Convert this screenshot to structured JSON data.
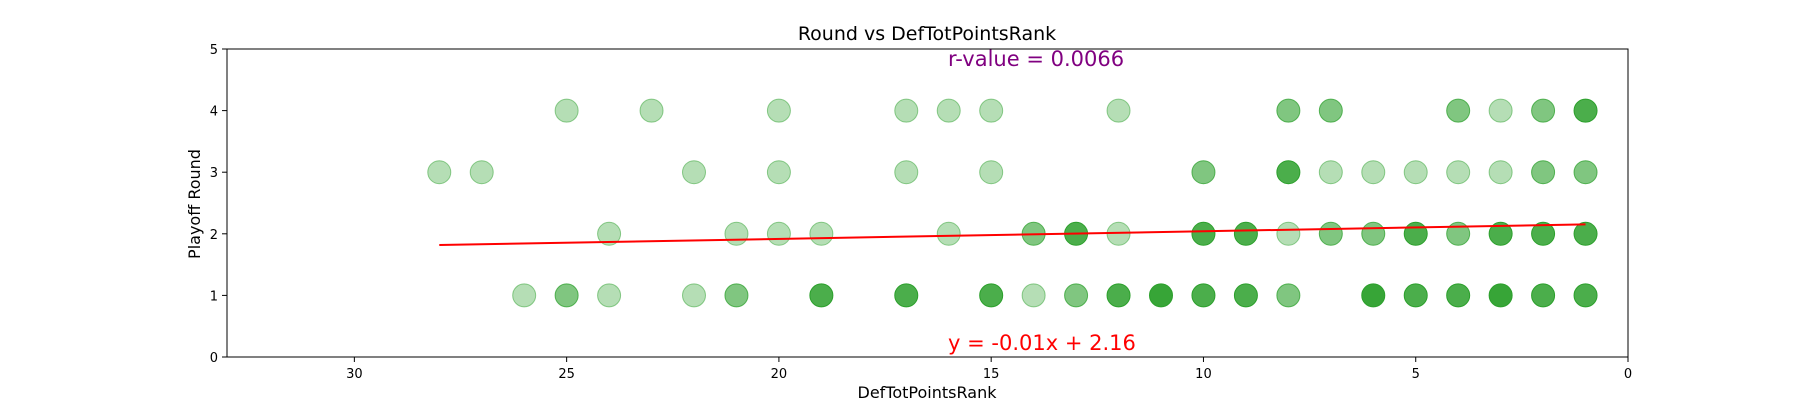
{
  "chart_data": {
    "type": "scatter",
    "title": "Round vs DefTotPointsRank",
    "xlabel": "DefTotPointsRank",
    "ylabel": "Playoff Round",
    "xlim": [
      33,
      0
    ],
    "ylim": [
      0,
      5
    ],
    "x_ticks": [
      30,
      25,
      20,
      15,
      10,
      5,
      0
    ],
    "y_ticks": [
      0,
      1,
      2,
      3,
      4,
      5
    ],
    "grid": false,
    "colors": {
      "points": "#2ca02c",
      "fit_line": "#ff0000",
      "r_text": "#800080",
      "eq_text": "#ff0000"
    },
    "points": [
      {
        "x": 25,
        "y": 4,
        "a": 0.35
      },
      {
        "x": 23,
        "y": 4,
        "a": 0.35
      },
      {
        "x": 20,
        "y": 4,
        "a": 0.35
      },
      {
        "x": 17,
        "y": 4,
        "a": 0.35
      },
      {
        "x": 16,
        "y": 4,
        "a": 0.35
      },
      {
        "x": 15,
        "y": 4,
        "a": 0.35
      },
      {
        "x": 12,
        "y": 4,
        "a": 0.35
      },
      {
        "x": 8,
        "y": 4,
        "a": 0.6
      },
      {
        "x": 7,
        "y": 4,
        "a": 0.6
      },
      {
        "x": 4,
        "y": 4,
        "a": 0.6
      },
      {
        "x": 3,
        "y": 4,
        "a": 0.35
      },
      {
        "x": 2,
        "y": 4,
        "a": 0.6
      },
      {
        "x": 1,
        "y": 4,
        "a": 0.85
      },
      {
        "x": 28,
        "y": 3,
        "a": 0.35
      },
      {
        "x": 27,
        "y": 3,
        "a": 0.35
      },
      {
        "x": 22,
        "y": 3,
        "a": 0.35
      },
      {
        "x": 20,
        "y": 3,
        "a": 0.35
      },
      {
        "x": 17,
        "y": 3,
        "a": 0.35
      },
      {
        "x": 15,
        "y": 3,
        "a": 0.35
      },
      {
        "x": 10,
        "y": 3,
        "a": 0.6
      },
      {
        "x": 8,
        "y": 3,
        "a": 0.85
      },
      {
        "x": 7,
        "y": 3,
        "a": 0.35
      },
      {
        "x": 6,
        "y": 3,
        "a": 0.35
      },
      {
        "x": 5,
        "y": 3,
        "a": 0.35
      },
      {
        "x": 4,
        "y": 3,
        "a": 0.35
      },
      {
        "x": 3,
        "y": 3,
        "a": 0.35
      },
      {
        "x": 2,
        "y": 3,
        "a": 0.6
      },
      {
        "x": 1,
        "y": 3,
        "a": 0.6
      },
      {
        "x": 24,
        "y": 2,
        "a": 0.35
      },
      {
        "x": 21,
        "y": 2,
        "a": 0.35
      },
      {
        "x": 20,
        "y": 2,
        "a": 0.35
      },
      {
        "x": 19,
        "y": 2,
        "a": 0.35
      },
      {
        "x": 16,
        "y": 2,
        "a": 0.35
      },
      {
        "x": 14,
        "y": 2,
        "a": 0.6
      },
      {
        "x": 13,
        "y": 2,
        "a": 0.85
      },
      {
        "x": 12,
        "y": 2,
        "a": 0.35
      },
      {
        "x": 10,
        "y": 2,
        "a": 0.85
      },
      {
        "x": 9,
        "y": 2,
        "a": 0.85
      },
      {
        "x": 8,
        "y": 2,
        "a": 0.35
      },
      {
        "x": 7,
        "y": 2,
        "a": 0.6
      },
      {
        "x": 6,
        "y": 2,
        "a": 0.6
      },
      {
        "x": 5,
        "y": 2,
        "a": 0.85
      },
      {
        "x": 4,
        "y": 2,
        "a": 0.6
      },
      {
        "x": 3,
        "y": 2,
        "a": 0.85
      },
      {
        "x": 2,
        "y": 2,
        "a": 0.85
      },
      {
        "x": 1,
        "y": 2,
        "a": 0.85
      },
      {
        "x": 26,
        "y": 1,
        "a": 0.35
      },
      {
        "x": 25,
        "y": 1,
        "a": 0.6
      },
      {
        "x": 24,
        "y": 1,
        "a": 0.35
      },
      {
        "x": 22,
        "y": 1,
        "a": 0.35
      },
      {
        "x": 21,
        "y": 1,
        "a": 0.6
      },
      {
        "x": 19,
        "y": 1,
        "a": 0.85
      },
      {
        "x": 17,
        "y": 1,
        "a": 0.85
      },
      {
        "x": 15,
        "y": 1,
        "a": 0.85
      },
      {
        "x": 14,
        "y": 1,
        "a": 0.35
      },
      {
        "x": 13,
        "y": 1,
        "a": 0.6
      },
      {
        "x": 12,
        "y": 1,
        "a": 0.85
      },
      {
        "x": 11,
        "y": 1,
        "a": 0.95
      },
      {
        "x": 10,
        "y": 1,
        "a": 0.85
      },
      {
        "x": 9,
        "y": 1,
        "a": 0.85
      },
      {
        "x": 8,
        "y": 1,
        "a": 0.6
      },
      {
        "x": 6,
        "y": 1,
        "a": 0.95
      },
      {
        "x": 5,
        "y": 1,
        "a": 0.85
      },
      {
        "x": 4,
        "y": 1,
        "a": 0.85
      },
      {
        "x": 3,
        "y": 1,
        "a": 0.95
      },
      {
        "x": 2,
        "y": 1,
        "a": 0.85
      },
      {
        "x": 1,
        "y": 1,
        "a": 0.85
      }
    ],
    "fit_line": {
      "x_start": 28,
      "x_end": 1,
      "slope": -0.0124,
      "intercept": 2.165
    },
    "annotations": {
      "r_value": "r-value = 0.0066",
      "equation": "y = -0.01x + 2.16"
    }
  }
}
